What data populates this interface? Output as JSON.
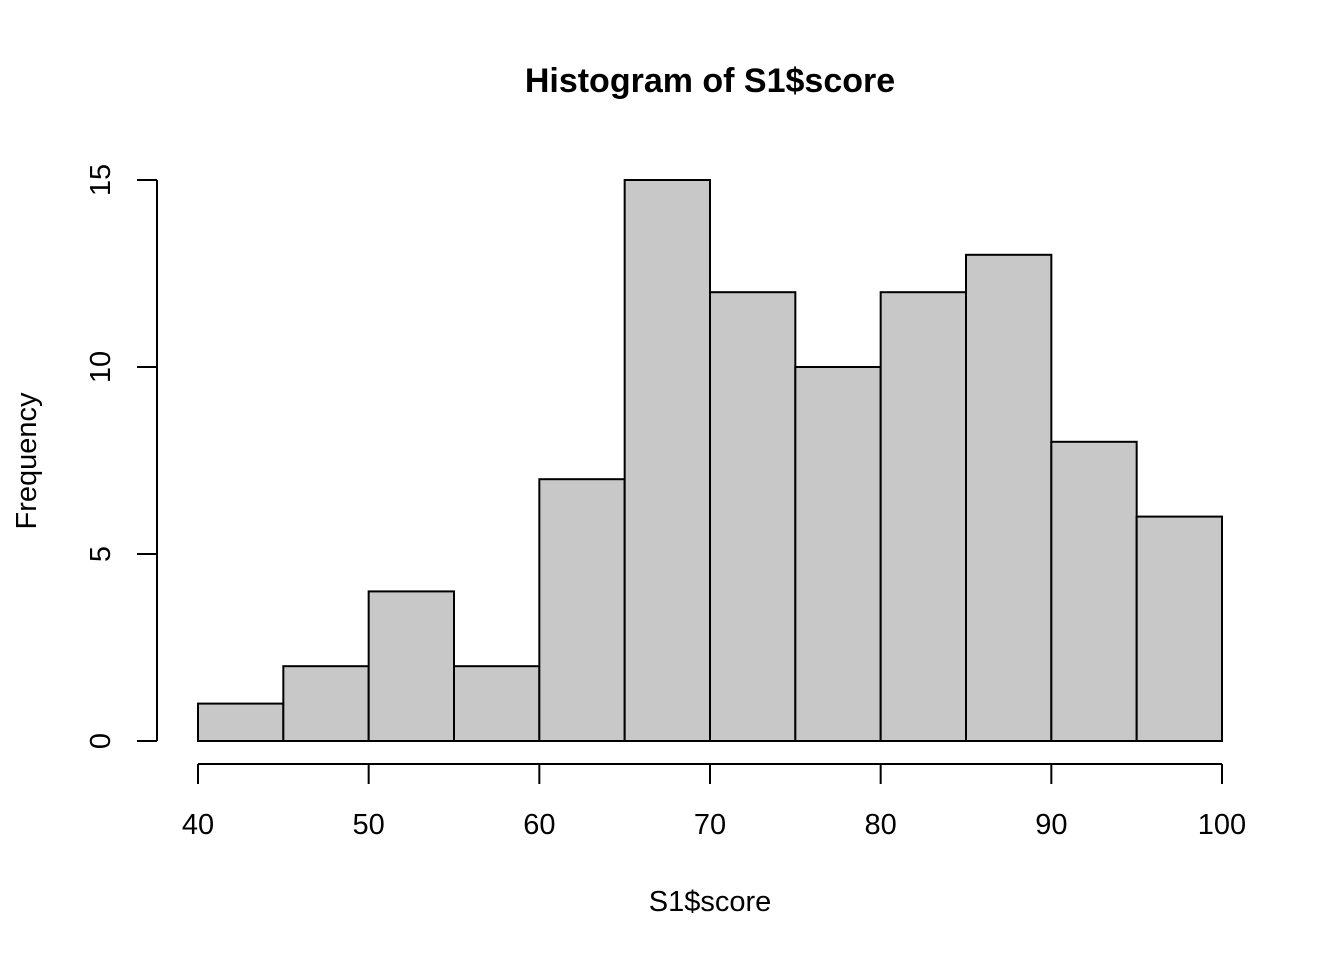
{
  "chart_data": {
    "type": "bar",
    "title": "Histogram of S1$score",
    "xlabel": "S1$score",
    "ylabel": "Frequency",
    "bin_edges": [
      40,
      45,
      50,
      55,
      60,
      65,
      70,
      75,
      80,
      85,
      90,
      95,
      100
    ],
    "values": [
      1,
      2,
      4,
      2,
      7,
      15,
      12,
      10,
      12,
      13,
      8,
      6
    ],
    "xlim": [
      40,
      100
    ],
    "ylim": [
      0,
      15
    ],
    "x_ticks": [
      40,
      50,
      60,
      70,
      80,
      90,
      100
    ],
    "y_ticks": [
      0,
      5,
      10,
      15
    ],
    "bar_color": "#c8c8c8",
    "grid": false
  }
}
